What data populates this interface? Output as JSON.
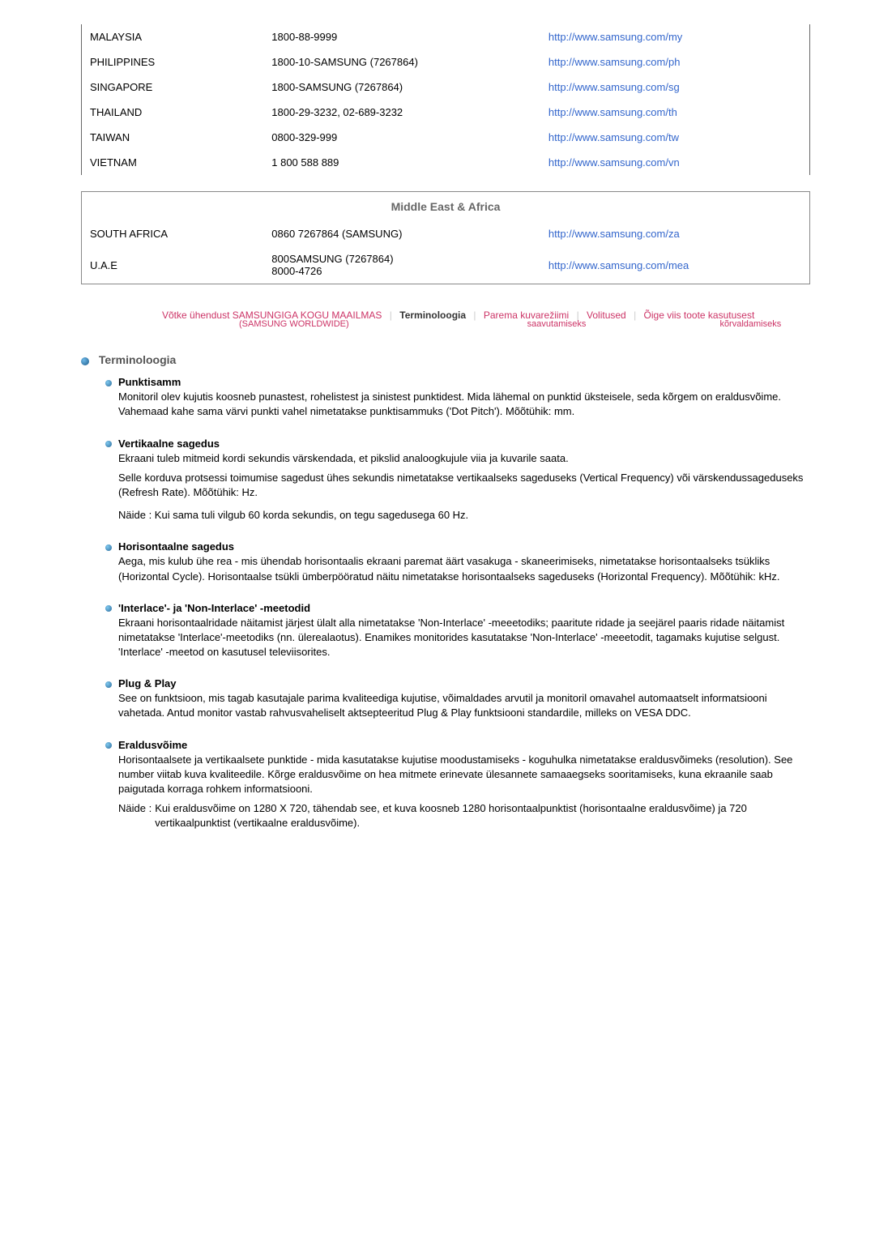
{
  "contacts_top": [
    {
      "country": "MALAYSIA",
      "phone": "1800-88-9999",
      "url": "http://www.samsung.com/my"
    },
    {
      "country": "PHILIPPINES",
      "phone": "1800-10-SAMSUNG (7267864)",
      "url": "http://www.samsung.com/ph"
    },
    {
      "country": "SINGAPORE",
      "phone": "1800-SAMSUNG (7267864)",
      "url": "http://www.samsung.com/sg"
    },
    {
      "country": "THAILAND",
      "phone": "1800-29-3232, 02-689-3232",
      "url": "http://www.samsung.com/th"
    },
    {
      "country": "TAIWAN",
      "phone": "0800-329-999",
      "url": "http://www.samsung.com/tw"
    },
    {
      "country": "VIETNAM",
      "phone": "1 800 588 889",
      "url": "http://www.samsung.com/vn"
    }
  ],
  "region_mea_title": "Middle East & Africa",
  "contacts_mea": [
    {
      "country": "SOUTH AFRICA",
      "phone": "0860 7267864 (SAMSUNG)",
      "url": "http://www.samsung.com/za"
    },
    {
      "country": "U.A.E",
      "phone": "800SAMSUNG (7267864)\n8000-4726",
      "url": "http://www.samsung.com/mea"
    }
  ],
  "nav": {
    "worldwide_line1": "Võtke ühendust SAMSUNGIGA KOGU MAAILMAS",
    "worldwide_line2": "(SAMSUNG WORLDWIDE)",
    "term": "Terminoloogia",
    "display_line1": "Parema kuvarežiimi",
    "display_line2": "saavutamiseks",
    "auth": "Volitused",
    "correct_line1": "Õige viis toote kasutusest",
    "correct_line2": "kõrvaldamiseks"
  },
  "section_title": "Terminoloogia",
  "terms": [
    {
      "title": "Punktisamm",
      "paras": [
        "Monitoril olev kujutis koosneb punastest, rohelistest ja sinistest punktidest. Mida lähemal on punktid üksteisele, seda kõrgem on eraldusvõime. Vahemaad kahe sama värvi punkti vahel nimetatakse punktisammuks ('Dot Pitch'). Mõõtühik: mm."
      ]
    },
    {
      "title": "Vertikaalne sagedus",
      "paras": [
        "Ekraani tuleb mitmeid kordi sekundis värskendada, et pikslid analoogkujule viia ja kuvarile saata.",
        "Selle korduva protsessi toimumise sagedust ühes sekundis nimetatakse vertikaalseks sageduseks (Vertical Frequency) või värskendussageduseks (Refresh Rate). Mõõtühik: Hz.",
        "Näide : Kui sama tuli vilgub 60 korda sekundis, on tegu sagedusega 60 Hz."
      ]
    },
    {
      "title": "Horisontaalne sagedus",
      "paras": [
        "Aega, mis kulub ühe rea - mis ühendab horisontaalis ekraani paremat äärt vasakuga - skaneerimiseks, nimetatakse horisontaalseks tsükliks (Horizontal Cycle). Horisontaalse tsükli ümberpööratud näitu nimetatakse horisontaalseks sageduseks (Horizontal Frequency). Mõõtühik: kHz."
      ]
    },
    {
      "title": "'Interlace'- ja 'Non-Interlace' -meetodid",
      "paras": [
        "Ekraani horisontaalridade näitamist järjest ülalt alla nimetatakse 'Non-Interlace' -meeetodiks; paaritute ridade ja seejärel paaris ridade näitamist nimetatakse 'Interlace'-meetodiks (nn. ülerealaotus). Enamikes monitorides kasutatakse 'Non-Interlace' -meeetodit, tagamaks kujutise selgust. 'Interlace' -meetod on kasutusel televiisorites."
      ]
    },
    {
      "title": "Plug & Play",
      "paras": [
        "See on funktsioon, mis tagab kasutajale parima kvaliteediga kujutise, võimaldades arvutil ja monitoril omavahel automaatselt informatsiooni vahetada. Antud monitor vastab rahvusvaheliselt aktsepteeritud Plug & Play funktsiooni standardile, milleks on VESA DDC."
      ]
    },
    {
      "title": "Eraldusvõime",
      "paras": [
        "Horisontaalsete ja vertikaalsete punktide - mida kasutatakse kujutise moodustamiseks - koguhulka nimetatakse eraldusvõimeks (resolution). See number viitab kuva kvaliteedile. Kõrge eraldusvõime on hea mitmete erinevate ülesannete samaaegseks sooritamiseks, kuna ekraanile saab paigutada korraga rohkem informatsiooni."
      ],
      "example_label": "Näide :",
      "example_text": "Kui eraldusvõime on 1280 X 720, tähendab see, et kuva koosneb 1280 horisontaalpunktist (horisontaalne eraldusvõime) ja 720 vertikaalpunktist (vertikaalne eraldusvõime)."
    }
  ]
}
